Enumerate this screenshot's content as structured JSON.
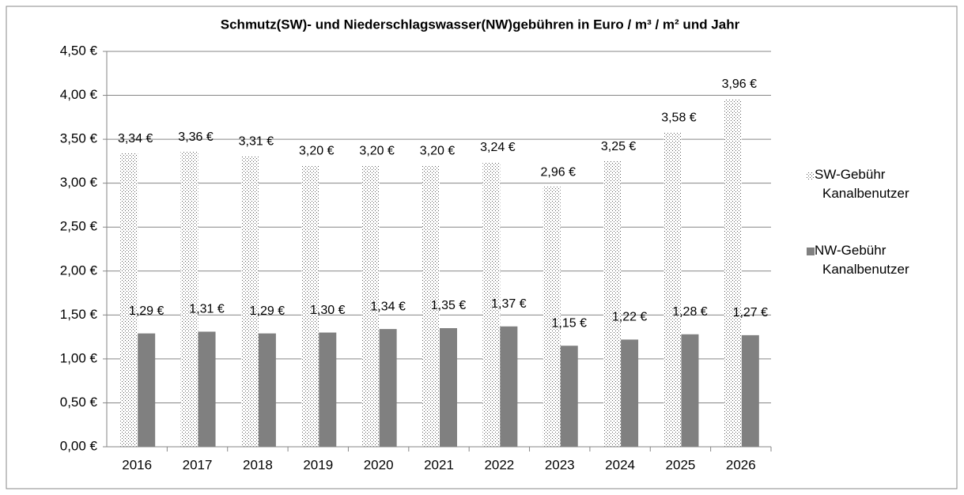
{
  "chart_data": {
    "type": "bar",
    "title": "Schmutz(SW)- und Niederschlagswasser(NW)gebühren in Euro / m³ / m² und Jahr",
    "categories": [
      "2016",
      "2017",
      "2018",
      "2019",
      "2020",
      "2021",
      "2022",
      "2023",
      "2024",
      "2025",
      "2026"
    ],
    "series": [
      {
        "name": "SW-Gebühr Kanalbenutzer",
        "color": "#595959",
        "pattern": "dots",
        "values": [
          3.34,
          3.36,
          3.31,
          3.2,
          3.2,
          3.2,
          3.24,
          2.96,
          3.25,
          3.58,
          3.96
        ],
        "value_labels": [
          "3,34 €",
          "3,36 €",
          "3,31 €",
          "3,20 €",
          "3,20 €",
          "3,20 €",
          "3,24 €",
          "2,96 €",
          "3,25 €",
          "3,58 €",
          "3,96 €"
        ]
      },
      {
        "name": "NW-Gebühr Kanalbenutzer",
        "color": "#808080",
        "values": [
          1.29,
          1.31,
          1.29,
          1.3,
          1.34,
          1.35,
          1.37,
          1.15,
          1.22,
          1.28,
          1.27
        ],
        "value_labels": [
          "1,29 €",
          "1,31 €",
          "1,29 €",
          "1,30 €",
          "1,34 €",
          "1,35 €",
          "1,37 €",
          "1,15 €",
          "1,22 €",
          "1,28 €",
          "1,27 €"
        ]
      }
    ],
    "ylim": [
      0,
      4.5
    ],
    "yticks": [
      {
        "value": 0,
        "label": "0,00 €"
      },
      {
        "value": 0.5,
        "label": "0,50 €"
      },
      {
        "value": 1,
        "label": "1,00 €"
      },
      {
        "value": 1.5,
        "label": "1,50 €"
      },
      {
        "value": 2,
        "label": "2,00 €"
      },
      {
        "value": 2.5,
        "label": "2,50 €"
      },
      {
        "value": 3,
        "label": "3,00 €"
      },
      {
        "value": 3.5,
        "label": "3,50 €"
      },
      {
        "value": 4,
        "label": "4,00 €"
      },
      {
        "value": 4.5,
        "label": "4,50 €"
      }
    ],
    "grid": true,
    "legend": "right"
  }
}
